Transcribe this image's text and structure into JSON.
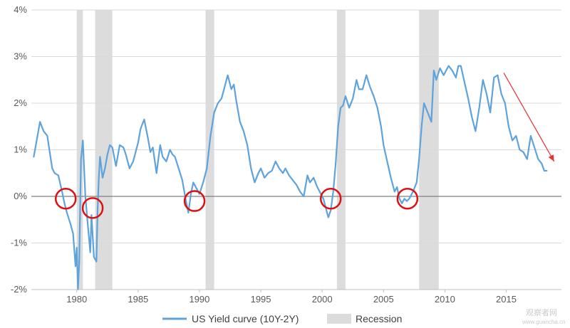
{
  "chart_data": {
    "type": "line",
    "title": "",
    "xlabel": "",
    "ylabel": "",
    "xlim": [
      1976.3,
      2019.5
    ],
    "ylim": [
      -2,
      4
    ],
    "yticks": [
      -2,
      -1,
      0,
      1,
      2,
      3,
      4
    ],
    "ytick_labels": [
      "-2%",
      "-1%",
      "0%",
      "1%",
      "2%",
      "3%",
      "4%"
    ],
    "xticks": [
      1980,
      1985,
      1990,
      1995,
      2000,
      2005,
      2010,
      2015
    ],
    "xtick_labels": [
      "1980",
      "1985",
      "1990",
      "1995",
      "2000",
      "2005",
      "2010",
      "2015"
    ],
    "grid": true,
    "legend_position": "bottom",
    "colors": {
      "series": "#5ea3db",
      "recession": "#dcdcdc",
      "circle": "#e01010",
      "arrow": "#e83030",
      "zero_line": "#808080",
      "grid": "#d9d9d9"
    },
    "series": [
      {
        "name": "US Yield curve (10Y-2Y)",
        "x": [
          1976.5,
          1976.7,
          1977.0,
          1977.3,
          1977.6,
          1977.8,
          1978.0,
          1978.2,
          1978.5,
          1978.8,
          1979.0,
          1979.2,
          1979.5,
          1979.7,
          1979.9,
          1980.0,
          1980.1,
          1980.2,
          1980.35,
          1980.5,
          1980.7,
          1980.9,
          1981.1,
          1981.2,
          1981.4,
          1981.6,
          1981.7,
          1981.8,
          1981.9,
          1982.1,
          1982.3,
          1982.5,
          1982.7,
          1982.9,
          1983.2,
          1983.5,
          1983.8,
          1984.0,
          1984.3,
          1984.6,
          1985.0,
          1985.2,
          1985.5,
          1985.8,
          1986.0,
          1986.2,
          1986.5,
          1986.8,
          1987.0,
          1987.3,
          1987.6,
          1987.8,
          1988.0,
          1988.3,
          1988.6,
          1988.9,
          1989.1,
          1989.3,
          1989.5,
          1989.8,
          1990.0,
          1990.3,
          1990.6,
          1990.9,
          1991.2,
          1991.5,
          1991.8,
          1992.0,
          1992.3,
          1992.6,
          1992.8,
          1993.0,
          1993.3,
          1993.6,
          1993.9,
          1994.2,
          1994.5,
          1994.8,
          1995.0,
          1995.3,
          1995.6,
          1995.9,
          1996.2,
          1996.5,
          1996.8,
          1997.0,
          1997.3,
          1997.6,
          1997.9,
          1998.2,
          1998.5,
          1998.8,
          1999.0,
          1999.3,
          1999.6,
          1999.9,
          2000.1,
          2000.3,
          2000.5,
          2000.7,
          2000.9,
          2001.1,
          2001.3,
          2001.5,
          2001.7,
          2001.9,
          2002.2,
          2002.5,
          2002.8,
          2003.0,
          2003.3,
          2003.6,
          2003.9,
          2004.2,
          2004.5,
          2004.8,
          2005.0,
          2005.3,
          2005.6,
          2005.9,
          2006.1,
          2006.3,
          2006.5,
          2006.7,
          2006.9,
          2007.1,
          2007.4,
          2007.7,
          2007.9,
          2008.1,
          2008.3,
          2008.6,
          2008.9,
          2009.1,
          2009.3,
          2009.6,
          2009.9,
          2010.1,
          2010.3,
          2010.6,
          2010.9,
          2011.1,
          2011.3,
          2011.6,
          2011.9,
          2012.2,
          2012.5,
          2012.8,
          2013.1,
          2013.4,
          2013.7,
          2014.0,
          2014.3,
          2014.6,
          2014.9,
          2015.2,
          2015.5,
          2015.8,
          2016.1,
          2016.4,
          2016.7,
          2017.0,
          2017.3,
          2017.6,
          2017.9,
          2018.1,
          2018.3
        ],
        "y": [
          0.85,
          1.15,
          1.6,
          1.4,
          1.3,
          0.95,
          0.6,
          0.5,
          0.45,
          0.1,
          -0.15,
          -0.35,
          -0.6,
          -0.8,
          -1.5,
          -1.1,
          -2.0,
          -1.4,
          0.8,
          1.2,
          0.0,
          -0.6,
          -1.2,
          -0.4,
          -1.3,
          -1.4,
          -0.3,
          0.4,
          0.85,
          0.4,
          0.6,
          0.9,
          1.1,
          1.05,
          0.65,
          1.1,
          1.05,
          0.9,
          0.6,
          0.75,
          1.15,
          1.45,
          1.65,
          1.25,
          0.95,
          1.05,
          0.5,
          1.1,
          0.85,
          0.75,
          1.0,
          0.9,
          0.85,
          0.6,
          0.35,
          -0.1,
          -0.35,
          0.05,
          0.3,
          0.15,
          0.05,
          0.3,
          0.6,
          1.3,
          1.8,
          2.0,
          2.1,
          2.3,
          2.6,
          2.3,
          2.4,
          2.05,
          1.6,
          1.4,
          1.1,
          0.6,
          0.3,
          0.5,
          0.6,
          0.4,
          0.5,
          0.55,
          0.75,
          0.6,
          0.5,
          0.6,
          0.45,
          0.35,
          0.25,
          0.1,
          0.0,
          0.45,
          0.3,
          0.4,
          0.2,
          0.05,
          -0.05,
          -0.25,
          -0.45,
          -0.3,
          0.1,
          0.7,
          1.5,
          1.9,
          1.95,
          2.15,
          1.9,
          2.1,
          2.5,
          2.3,
          2.3,
          2.6,
          2.35,
          2.15,
          1.9,
          1.5,
          1.1,
          0.75,
          0.4,
          0.1,
          0.2,
          -0.05,
          -0.15,
          -0.05,
          -0.1,
          -0.05,
          0.1,
          0.3,
          0.8,
          1.5,
          2.0,
          1.8,
          1.6,
          2.7,
          2.5,
          2.75,
          2.6,
          2.7,
          2.8,
          2.7,
          2.55,
          2.8,
          2.8,
          2.45,
          2.1,
          1.7,
          1.4,
          1.9,
          2.5,
          2.2,
          1.8,
          2.55,
          2.6,
          2.2,
          2.0,
          1.5,
          1.2,
          1.3,
          1.0,
          0.95,
          0.8,
          1.3,
          1.05,
          0.8,
          0.7,
          0.55,
          0.55
        ]
      }
    ],
    "recessions": [
      [
        1980.0,
        1980.5
      ],
      [
        1981.5,
        1982.9
      ],
      [
        1990.5,
        1991.2
      ],
      [
        2001.2,
        2001.9
      ],
      [
        2007.9,
        2009.5
      ]
    ],
    "annotations": {
      "circles": [
        {
          "x": 1979.1,
          "y": -0.05
        },
        {
          "x": 1981.3,
          "y": -0.25
        },
        {
          "x": 1989.6,
          "y": -0.1
        },
        {
          "x": 2000.7,
          "y": -0.05
        },
        {
          "x": 2006.95,
          "y": -0.05
        }
      ],
      "arrow": {
        "from": {
          "x": 2014.8,
          "y": 2.65
        },
        "to": {
          "x": 2018.9,
          "y": 0.75
        }
      }
    }
  },
  "legend": {
    "series_label": "US Yield curve (10Y-2Y)",
    "recession_label": "Recession"
  },
  "watermark": {
    "line1": "观察者网",
    "line2": "www.guancha.cn"
  }
}
